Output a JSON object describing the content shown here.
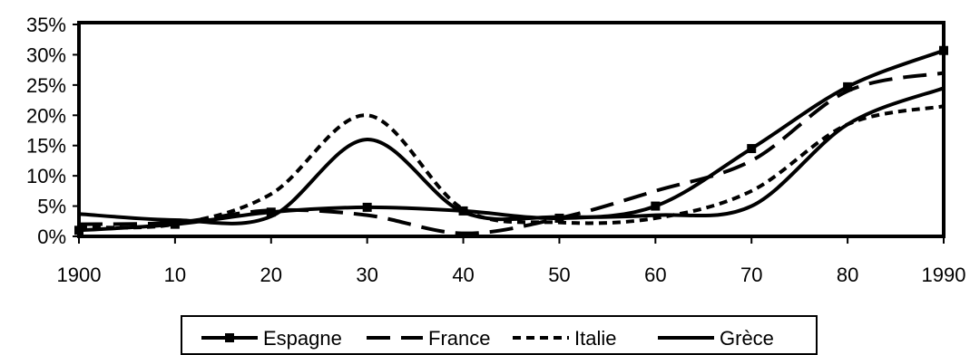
{
  "chart_data": {
    "type": "line",
    "x": [
      1900,
      1910,
      1920,
      1930,
      1940,
      1950,
      1960,
      1970,
      1980,
      1990
    ],
    "x_tick_labels": [
      "1900",
      "10",
      "20",
      "30",
      "40",
      "50",
      "60",
      "70",
      "80",
      "1990"
    ],
    "y_tick_labels": [
      "0%",
      "5%",
      "10%",
      "15%",
      "20%",
      "25%",
      "30%",
      "35%"
    ],
    "ylim": [
      0,
      35
    ],
    "xlim": [
      1900,
      1990
    ],
    "grid": false,
    "legend_position": "bottom",
    "series": [
      {
        "name": "Espagne",
        "values": [
          1.0,
          2.0,
          4.0,
          4.8,
          4.2,
          3.0,
          5.0,
          14.5,
          24.7,
          30.7
        ],
        "color": "#000000",
        "dash": "",
        "marker": "square"
      },
      {
        "name": "France",
        "values": [
          2.0,
          2.3,
          4.3,
          3.5,
          0.5,
          3.0,
          7.5,
          12.5,
          24.0,
          27.0
        ],
        "color": "#000000",
        "dash": "26,12",
        "marker": "none"
      },
      {
        "name": "Italie",
        "values": [
          1.5,
          2.0,
          7.0,
          20.0,
          4.5,
          2.3,
          3.0,
          7.5,
          18.5,
          21.5
        ],
        "color": "#000000",
        "dash": "9,6",
        "marker": "none"
      },
      {
        "name": "Grèce",
        "values": [
          3.7,
          2.7,
          3.3,
          16.0,
          4.0,
          3.2,
          3.5,
          5.0,
          18.5,
          24.5
        ],
        "color": "#000000",
        "dash": "",
        "marker": "none"
      }
    ]
  }
}
